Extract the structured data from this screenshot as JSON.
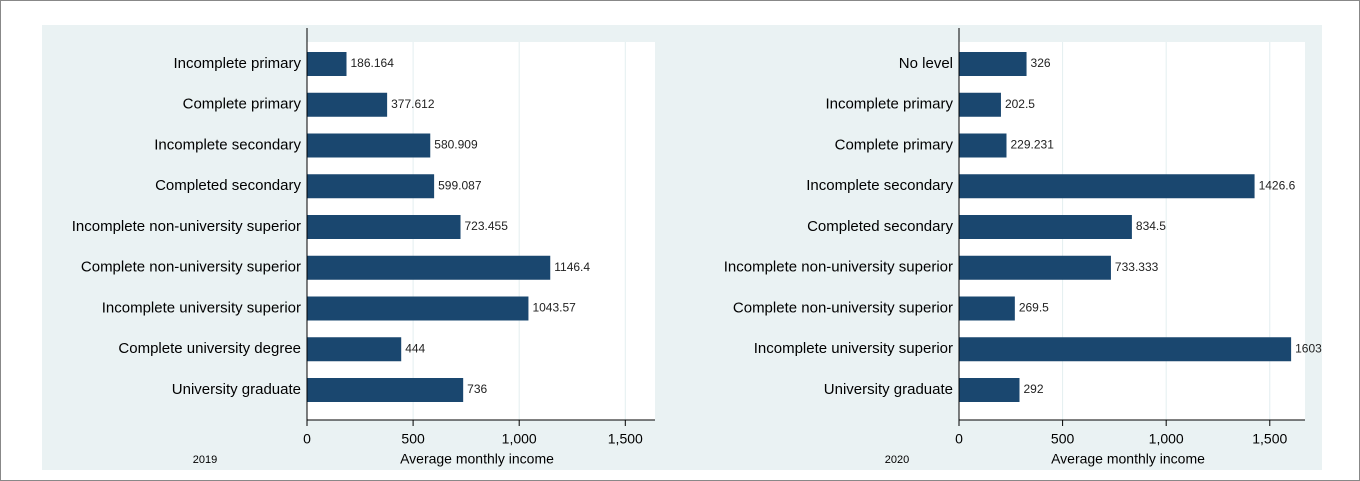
{
  "chart_data": [
    {
      "type": "bar",
      "title": "2019",
      "xlabel": "Average monthly income",
      "categories": [
        "Incomplete primary",
        "Complete primary",
        "Incomplete secondary",
        "Completed secondary",
        "Incomplete non-university superior",
        "Complete non-university superior",
        "Incomplete university superior",
        "Complete university degree",
        "University graduate"
      ],
      "values": [
        186.164,
        377.612,
        580.909,
        599.087,
        723.455,
        1146.4,
        1043.57,
        444,
        736
      ],
      "color": "#1a476f",
      "xlim": [
        0,
        1640
      ],
      "xticks": [
        0,
        500,
        {
          "value": 1000,
          "label": "1,000"
        },
        {
          "value": 1500,
          "label": "1,500"
        }
      ],
      "grid": true
    },
    {
      "type": "bar",
      "title": "2020",
      "xlabel": "Average monthly income",
      "categories": [
        "No level",
        "Incomplete primary",
        "Complete primary",
        "Incomplete secondary",
        "Completed secondary",
        "Incomplete non-university superior",
        "Complete non-university superior",
        "Incomplete university superior",
        "University graduate"
      ],
      "values": [
        326,
        202.5,
        229.231,
        1426.6,
        834.5,
        733.333,
        269.5,
        1603,
        292
      ],
      "color": "#1a476f",
      "xlim": [
        0,
        1670
      ],
      "xticks": [
        0,
        500,
        {
          "value": 1000,
          "label": "1,000"
        },
        {
          "value": 1500,
          "label": "1,500"
        }
      ],
      "grid": true
    }
  ]
}
